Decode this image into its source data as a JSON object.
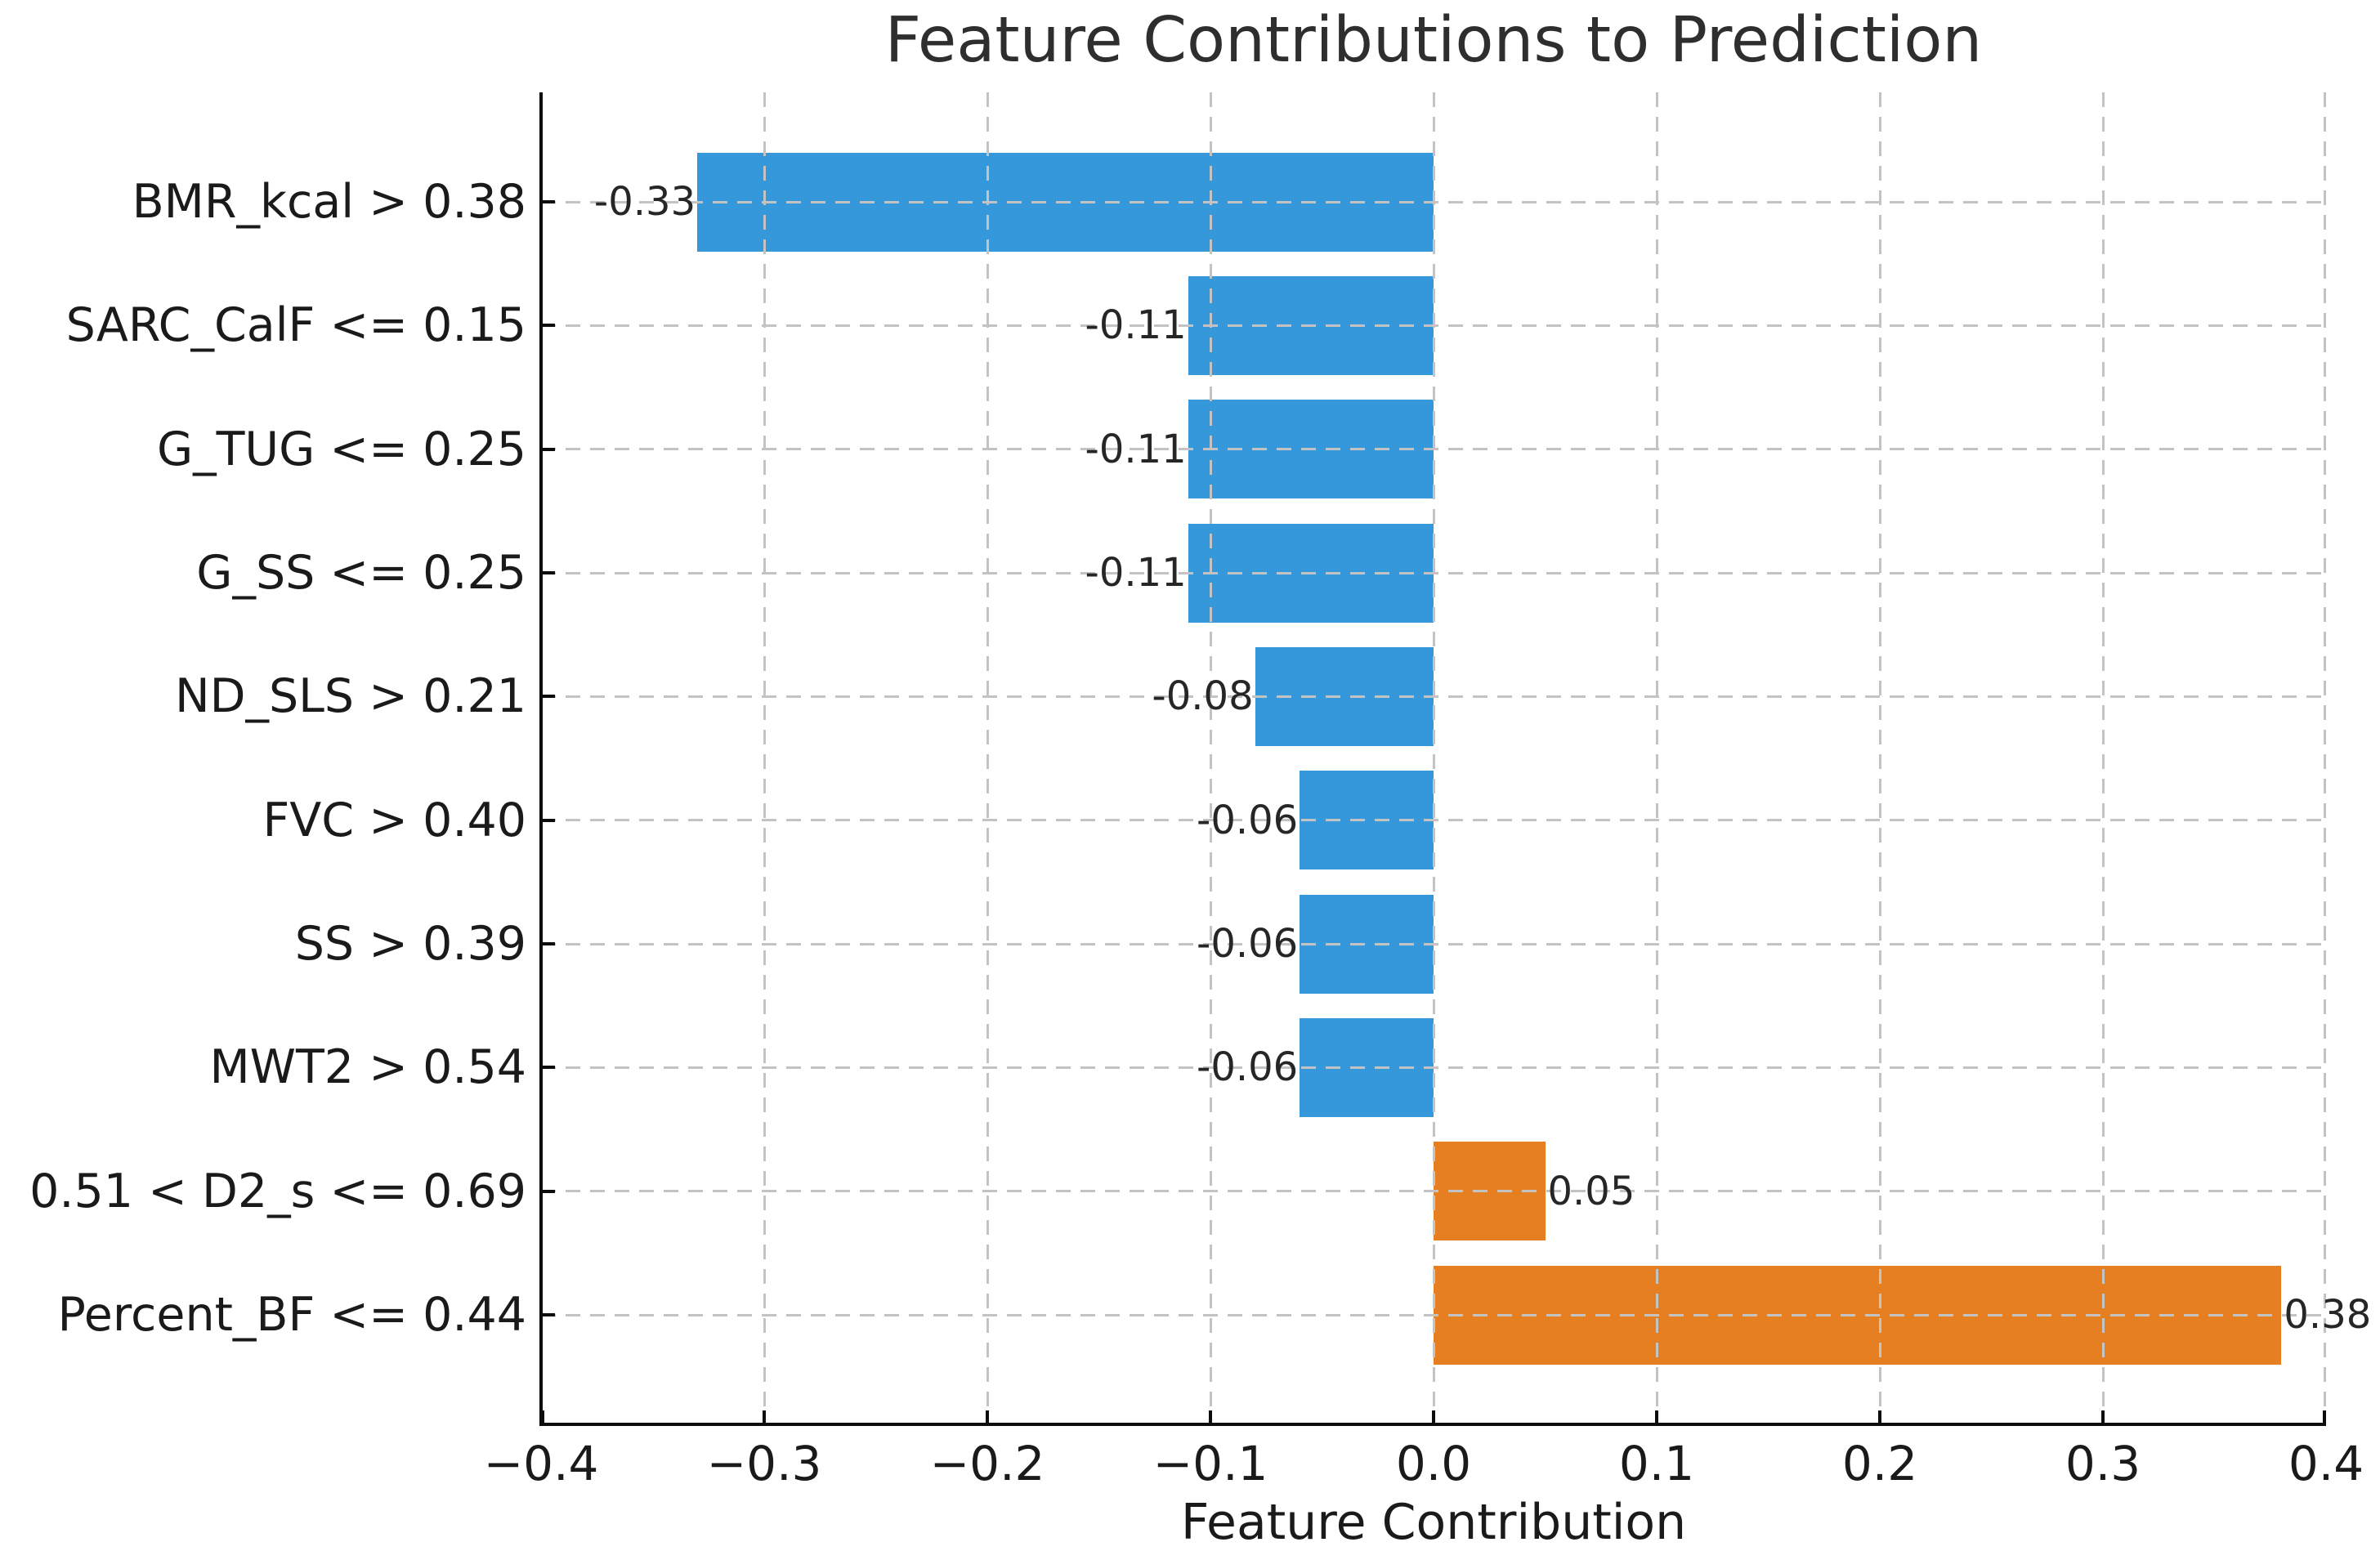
{
  "chart_data": {
    "type": "bar",
    "orientation": "horizontal",
    "title": "Feature Contributions to Prediction",
    "xlabel": "Feature Contribution",
    "ylabel": "",
    "categories": [
      "BMR_kcal > 0.38",
      "SARC_CalF <= 0.15",
      "G_TUG <= 0.25",
      "G_SS <= 0.25",
      "ND_SLS > 0.21",
      "FVC > 0.40",
      "SS > 0.39",
      "MWT2 > 0.54",
      "0.51 < D2_s <= 0.69",
      "Percent_BF <= 0.44"
    ],
    "values": [
      -0.33,
      -0.11,
      -0.11,
      -0.11,
      -0.08,
      -0.06,
      -0.06,
      -0.06,
      0.05,
      0.38
    ],
    "bar_labels": [
      "-0.33",
      "-0.11",
      "-0.11",
      "-0.11",
      "-0.08",
      "-0.06",
      "-0.06",
      "-0.06",
      "0.05",
      "0.38"
    ],
    "colors": {
      "negative_bar": "#3498db",
      "positive_bar": "#e67e22"
    },
    "xlim": [
      -0.4,
      0.4
    ],
    "xticks": [
      -0.4,
      -0.3,
      -0.2,
      -0.1,
      0.0,
      0.1,
      0.2,
      0.3,
      0.4
    ],
    "xtick_labels": [
      "−0.4",
      "−0.3",
      "−0.2",
      "−0.1",
      "0.0",
      "0.1",
      "0.2",
      "0.3",
      "0.4"
    ],
    "grid": true,
    "grid_style": "dashed",
    "legend": false
  }
}
